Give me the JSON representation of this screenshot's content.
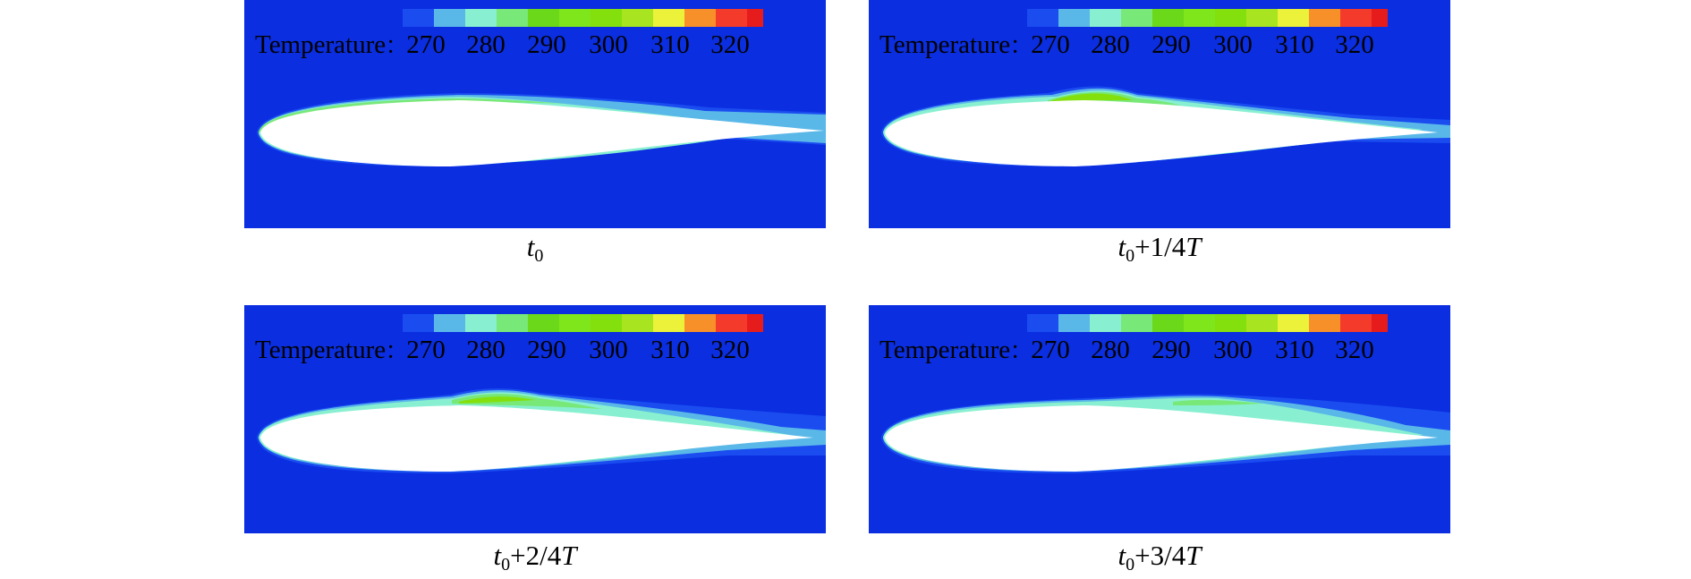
{
  "legend": {
    "label": "Temperature",
    "separator": "：",
    "ticks": [
      "270",
      "280",
      "290",
      "300",
      "310",
      "320"
    ],
    "colors": [
      "#1a4cf0",
      "#5ab8e8",
      "#88f0d0",
      "#78e878",
      "#6cd81a",
      "#7ee61a",
      "#84e00c",
      "#a8e420",
      "#ecf23a",
      "#f8902a",
      "#f43a2a",
      "#e61c1c"
    ]
  },
  "colors": {
    "background": "#0a2ee0",
    "airfoil": "#ffffff"
  },
  "panels": [
    {
      "caption_var": "t",
      "caption_sub": "0",
      "caption_suffix": "",
      "caption_T": ""
    },
    {
      "caption_var": "t",
      "caption_sub": "0",
      "caption_suffix": "+1/4",
      "caption_T": "T"
    },
    {
      "caption_var": "t",
      "caption_sub": "0",
      "caption_suffix": "+2/4",
      "caption_T": "T"
    },
    {
      "caption_var": "t",
      "caption_sub": "0",
      "caption_suffix": "+3/4",
      "caption_T": "T"
    }
  ]
}
